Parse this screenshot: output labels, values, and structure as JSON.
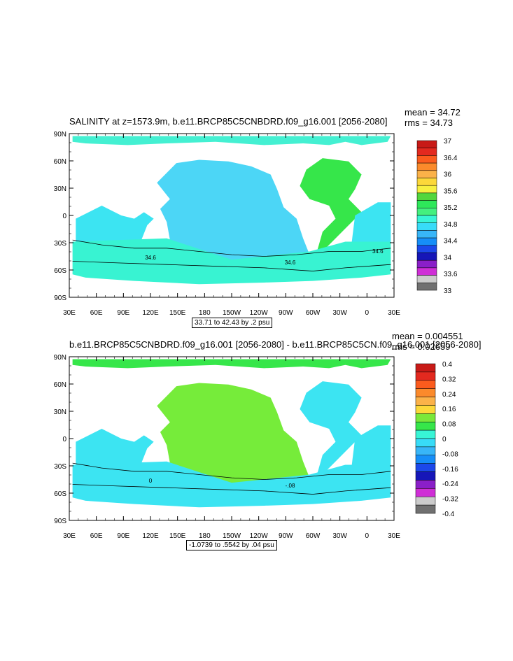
{
  "panels": [
    {
      "title": "SALINITY at z=1573.9m, b.e11.BRCP85C5CNBDRD.f09_g16.001 [2056-2080]",
      "stats": {
        "mean": "mean = 34.72",
        "rms": "rms = 34.73"
      },
      "info": "33.71 to 42.43 by .2 psu",
      "lat_labels": [
        "90N",
        "60N",
        "30N",
        "0",
        "30S",
        "60S",
        "90S"
      ],
      "lon_labels": [
        "30E",
        "60E",
        "90E",
        "120E",
        "150E",
        "180",
        "150W",
        "120W",
        "90W",
        "60W",
        "30W",
        "0",
        "30E"
      ],
      "contour_labels": [
        "34.6",
        "34.6",
        "34.6"
      ],
      "colorbar": {
        "labels": [
          "37",
          "36.4",
          "36",
          "35.6",
          "35.2",
          "34.8",
          "34.4",
          "34",
          "33.6",
          "33"
        ],
        "colors": [
          "#c81a17",
          "#e3291f",
          "#fb5b1d",
          "#fb8a2b",
          "#fbb249",
          "#fcd83a",
          "#f7f040",
          "#52d63d",
          "#2ee85a",
          "#44f07f",
          "#38f5d6",
          "#38dcf8",
          "#38b6f8",
          "#168ef8",
          "#1c48ea",
          "#1616b8",
          "#8a1fc8",
          "#cf2ed6",
          "#cccccc",
          "#707070"
        ]
      },
      "fills": {
        "ocean": "#3ce4f2",
        "pacific": "#4cd6f6",
        "atlantic": "#36e64a",
        "southern": "#38f3d2",
        "arctic": "#44f0d2"
      }
    },
    {
      "title": "b.e11.BRCP85C5CNBDRD.f09_g16.001 [2056-2080] - b.e11.BRCP85C5CN.f09_g16.001 [2056-2080]",
      "stats": {
        "mean": "mean = 0.004551",
        "rms": "rms = 0.02659"
      },
      "info": "-1.0739 to .5542 by .04 psu",
      "lat_labels": [
        "90N",
        "60N",
        "30N",
        "0",
        "30S",
        "60S",
        "90S"
      ],
      "lon_labels": [
        "30E",
        "60E",
        "90E",
        "120E",
        "150E",
        "180",
        "150W",
        "120W",
        "90W",
        "60W",
        "30W",
        "0",
        "30E"
      ],
      "contour_labels": [
        "0",
        "-.08"
      ],
      "colorbar": {
        "labels": [
          "0.4",
          "0.32",
          "0.24",
          "0.16",
          "0.08",
          "0",
          "-0.08",
          "-0.16",
          "-0.24",
          "-0.32",
          "-0.4"
        ],
        "colors": [
          "#c81a17",
          "#e3291f",
          "#fb5b1d",
          "#fb8a2b",
          "#fbb249",
          "#fcd83a",
          "#7ae83a",
          "#36e64a",
          "#38f5d6",
          "#38dcf8",
          "#38b6f8",
          "#168ef8",
          "#1c48ea",
          "#1616b8",
          "#8a1fc8",
          "#cf2ed6",
          "#cccccc",
          "#707070"
        ]
      },
      "fills": {
        "ocean": "#3ce4f2",
        "pacific": "#76ec3a",
        "atlantic": "#3ce4f2",
        "southern": "#3ce4f2",
        "arctic": "#36e64a"
      }
    }
  ]
}
